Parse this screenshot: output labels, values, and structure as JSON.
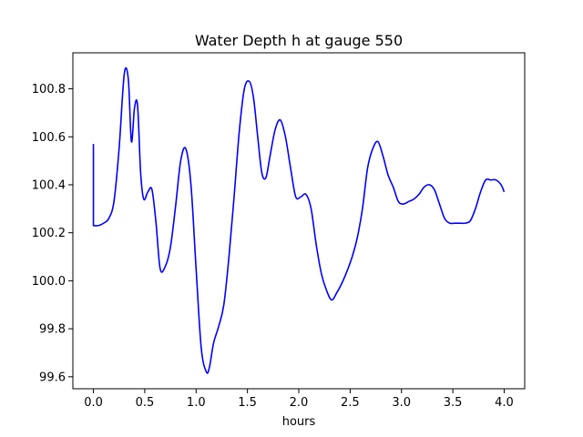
{
  "chart_data": {
    "type": "line",
    "title": "Water Depth h at gauge 550",
    "xlabel": "hours",
    "ylabel": "",
    "xlim": [
      -0.2,
      4.2
    ],
    "ylim": [
      99.55,
      100.95
    ],
    "xticks": [
      0.0,
      0.5,
      1.0,
      1.5,
      2.0,
      2.5,
      3.0,
      3.5,
      4.0
    ],
    "xtick_labels": [
      "0.0",
      "0.5",
      "1.0",
      "1.5",
      "2.0",
      "2.5",
      "3.0",
      "3.5",
      "4.0"
    ],
    "yticks": [
      99.6,
      99.8,
      100.0,
      100.2,
      100.4,
      100.6,
      100.8
    ],
    "ytick_labels": [
      "99.6",
      "99.8",
      "100.0",
      "100.2",
      "100.4",
      "100.6",
      "100.8"
    ],
    "grid": false,
    "series": [
      {
        "color": "#0000ff",
        "x": [
          0.0,
          0.0,
          0.05,
          0.1,
          0.15,
          0.2,
          0.25,
          0.3,
          0.34,
          0.37,
          0.4,
          0.43,
          0.46,
          0.49,
          0.53,
          0.57,
          0.61,
          0.65,
          0.7,
          0.75,
          0.8,
          0.85,
          0.9,
          0.95,
          1.0,
          1.05,
          1.1,
          1.13,
          1.17,
          1.22,
          1.27,
          1.32,
          1.37,
          1.42,
          1.47,
          1.52,
          1.56,
          1.6,
          1.64,
          1.68,
          1.72,
          1.77,
          1.82,
          1.87,
          1.92,
          1.97,
          2.02,
          2.07,
          2.12,
          2.17,
          2.22,
          2.27,
          2.32,
          2.37,
          2.42,
          2.47,
          2.52,
          2.57,
          2.62,
          2.67,
          2.72,
          2.77,
          2.82,
          2.87,
          2.92,
          2.97,
          3.02,
          3.07,
          3.12,
          3.17,
          3.22,
          3.27,
          3.32,
          3.37,
          3.42,
          3.47,
          3.52,
          3.57,
          3.62,
          3.67,
          3.72,
          3.77,
          3.82,
          3.87,
          3.92,
          3.97,
          4.0
        ],
        "y": [
          100.57,
          100.23,
          100.23,
          100.24,
          100.26,
          100.33,
          100.55,
          100.86,
          100.84,
          100.58,
          100.72,
          100.73,
          100.45,
          100.34,
          100.37,
          100.38,
          100.24,
          100.05,
          100.06,
          100.14,
          100.31,
          100.5,
          100.55,
          100.4,
          100.05,
          99.72,
          99.62,
          99.64,
          99.74,
          99.81,
          99.9,
          100.1,
          100.35,
          100.62,
          100.8,
          100.83,
          100.76,
          100.6,
          100.45,
          100.43,
          100.52,
          100.63,
          100.67,
          100.6,
          100.47,
          100.35,
          100.35,
          100.36,
          100.3,
          100.15,
          100.03,
          99.96,
          99.92,
          99.95,
          99.99,
          100.04,
          100.1,
          100.18,
          100.3,
          100.47,
          100.55,
          100.58,
          100.52,
          100.44,
          100.39,
          100.33,
          100.32,
          100.33,
          100.34,
          100.36,
          100.39,
          100.4,
          100.38,
          100.32,
          100.26,
          100.24,
          100.24,
          100.24,
          100.24,
          100.25,
          100.3,
          100.37,
          100.42,
          100.42,
          100.42,
          100.4,
          100.37
        ]
      }
    ]
  }
}
